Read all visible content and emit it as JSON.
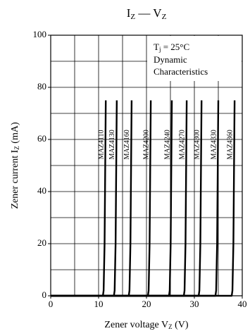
{
  "chart_data": {
    "type": "line",
    "title": [
      "I",
      "Z",
      " — V",
      "Z"
    ],
    "xlabel": [
      "Zener voltage  V",
      "Z",
      "  (V)"
    ],
    "ylabel": [
      "Zener current  I",
      "Z",
      "  (mA)"
    ],
    "annotation": [
      [
        "T",
        "j",
        " = 25°C"
      ],
      "Dynamic",
      "Characteristics"
    ],
    "xlim": [
      0,
      40
    ],
    "xticks": [
      0,
      10,
      20,
      30,
      40
    ],
    "xgrid": [
      0,
      5,
      10,
      15,
      20,
      25,
      30,
      35,
      40
    ],
    "ylim": [
      0,
      100
    ],
    "yticks": [
      0,
      20,
      40,
      60,
      80,
      100
    ],
    "ygrid": [
      0,
      10,
      20,
      30,
      40,
      50,
      60,
      70,
      80,
      90,
      100
    ],
    "color": "#000000",
    "series": [
      {
        "name": "MAZ4110",
        "x": [
          0,
          10.9,
          11.05,
          11.25,
          11.5
        ],
        "values": [
          0,
          0,
          2,
          20,
          75
        ]
      },
      {
        "name": "MAZ4130",
        "x": [
          0,
          13.2,
          13.35,
          13.55,
          13.8
        ],
        "values": [
          0,
          0,
          2,
          20,
          75
        ]
      },
      {
        "name": "MAZ4160",
        "x": [
          0,
          16.3,
          16.45,
          16.65,
          16.9
        ],
        "values": [
          0,
          0,
          2,
          20,
          75
        ]
      },
      {
        "name": "MAZ4200",
        "x": [
          0,
          20.3,
          20.45,
          20.65,
          20.9
        ],
        "values": [
          0,
          0,
          2,
          20,
          75
        ]
      },
      {
        "name": "MAZ4240",
        "x": [
          0,
          24.7,
          24.85,
          25.05,
          25.3
        ],
        "values": [
          0,
          0,
          2,
          20,
          75
        ]
      },
      {
        "name": "MAZ4270",
        "x": [
          0,
          27.8,
          27.95,
          28.15,
          28.4
        ],
        "values": [
          0,
          0,
          2,
          20,
          75
        ]
      },
      {
        "name": "MAZ4300",
        "x": [
          0,
          30.9,
          31.05,
          31.25,
          31.5
        ],
        "values": [
          0,
          0,
          2,
          20,
          75
        ]
      },
      {
        "name": "MAZ4330",
        "x": [
          0,
          34.4,
          34.55,
          34.75,
          35.0
        ],
        "values": [
          0,
          0,
          2,
          20,
          75
        ]
      },
      {
        "name": "MAZ4360",
        "x": [
          0,
          37.8,
          37.95,
          38.15,
          38.4
        ],
        "values": [
          0,
          0,
          2,
          20,
          75
        ]
      }
    ]
  }
}
